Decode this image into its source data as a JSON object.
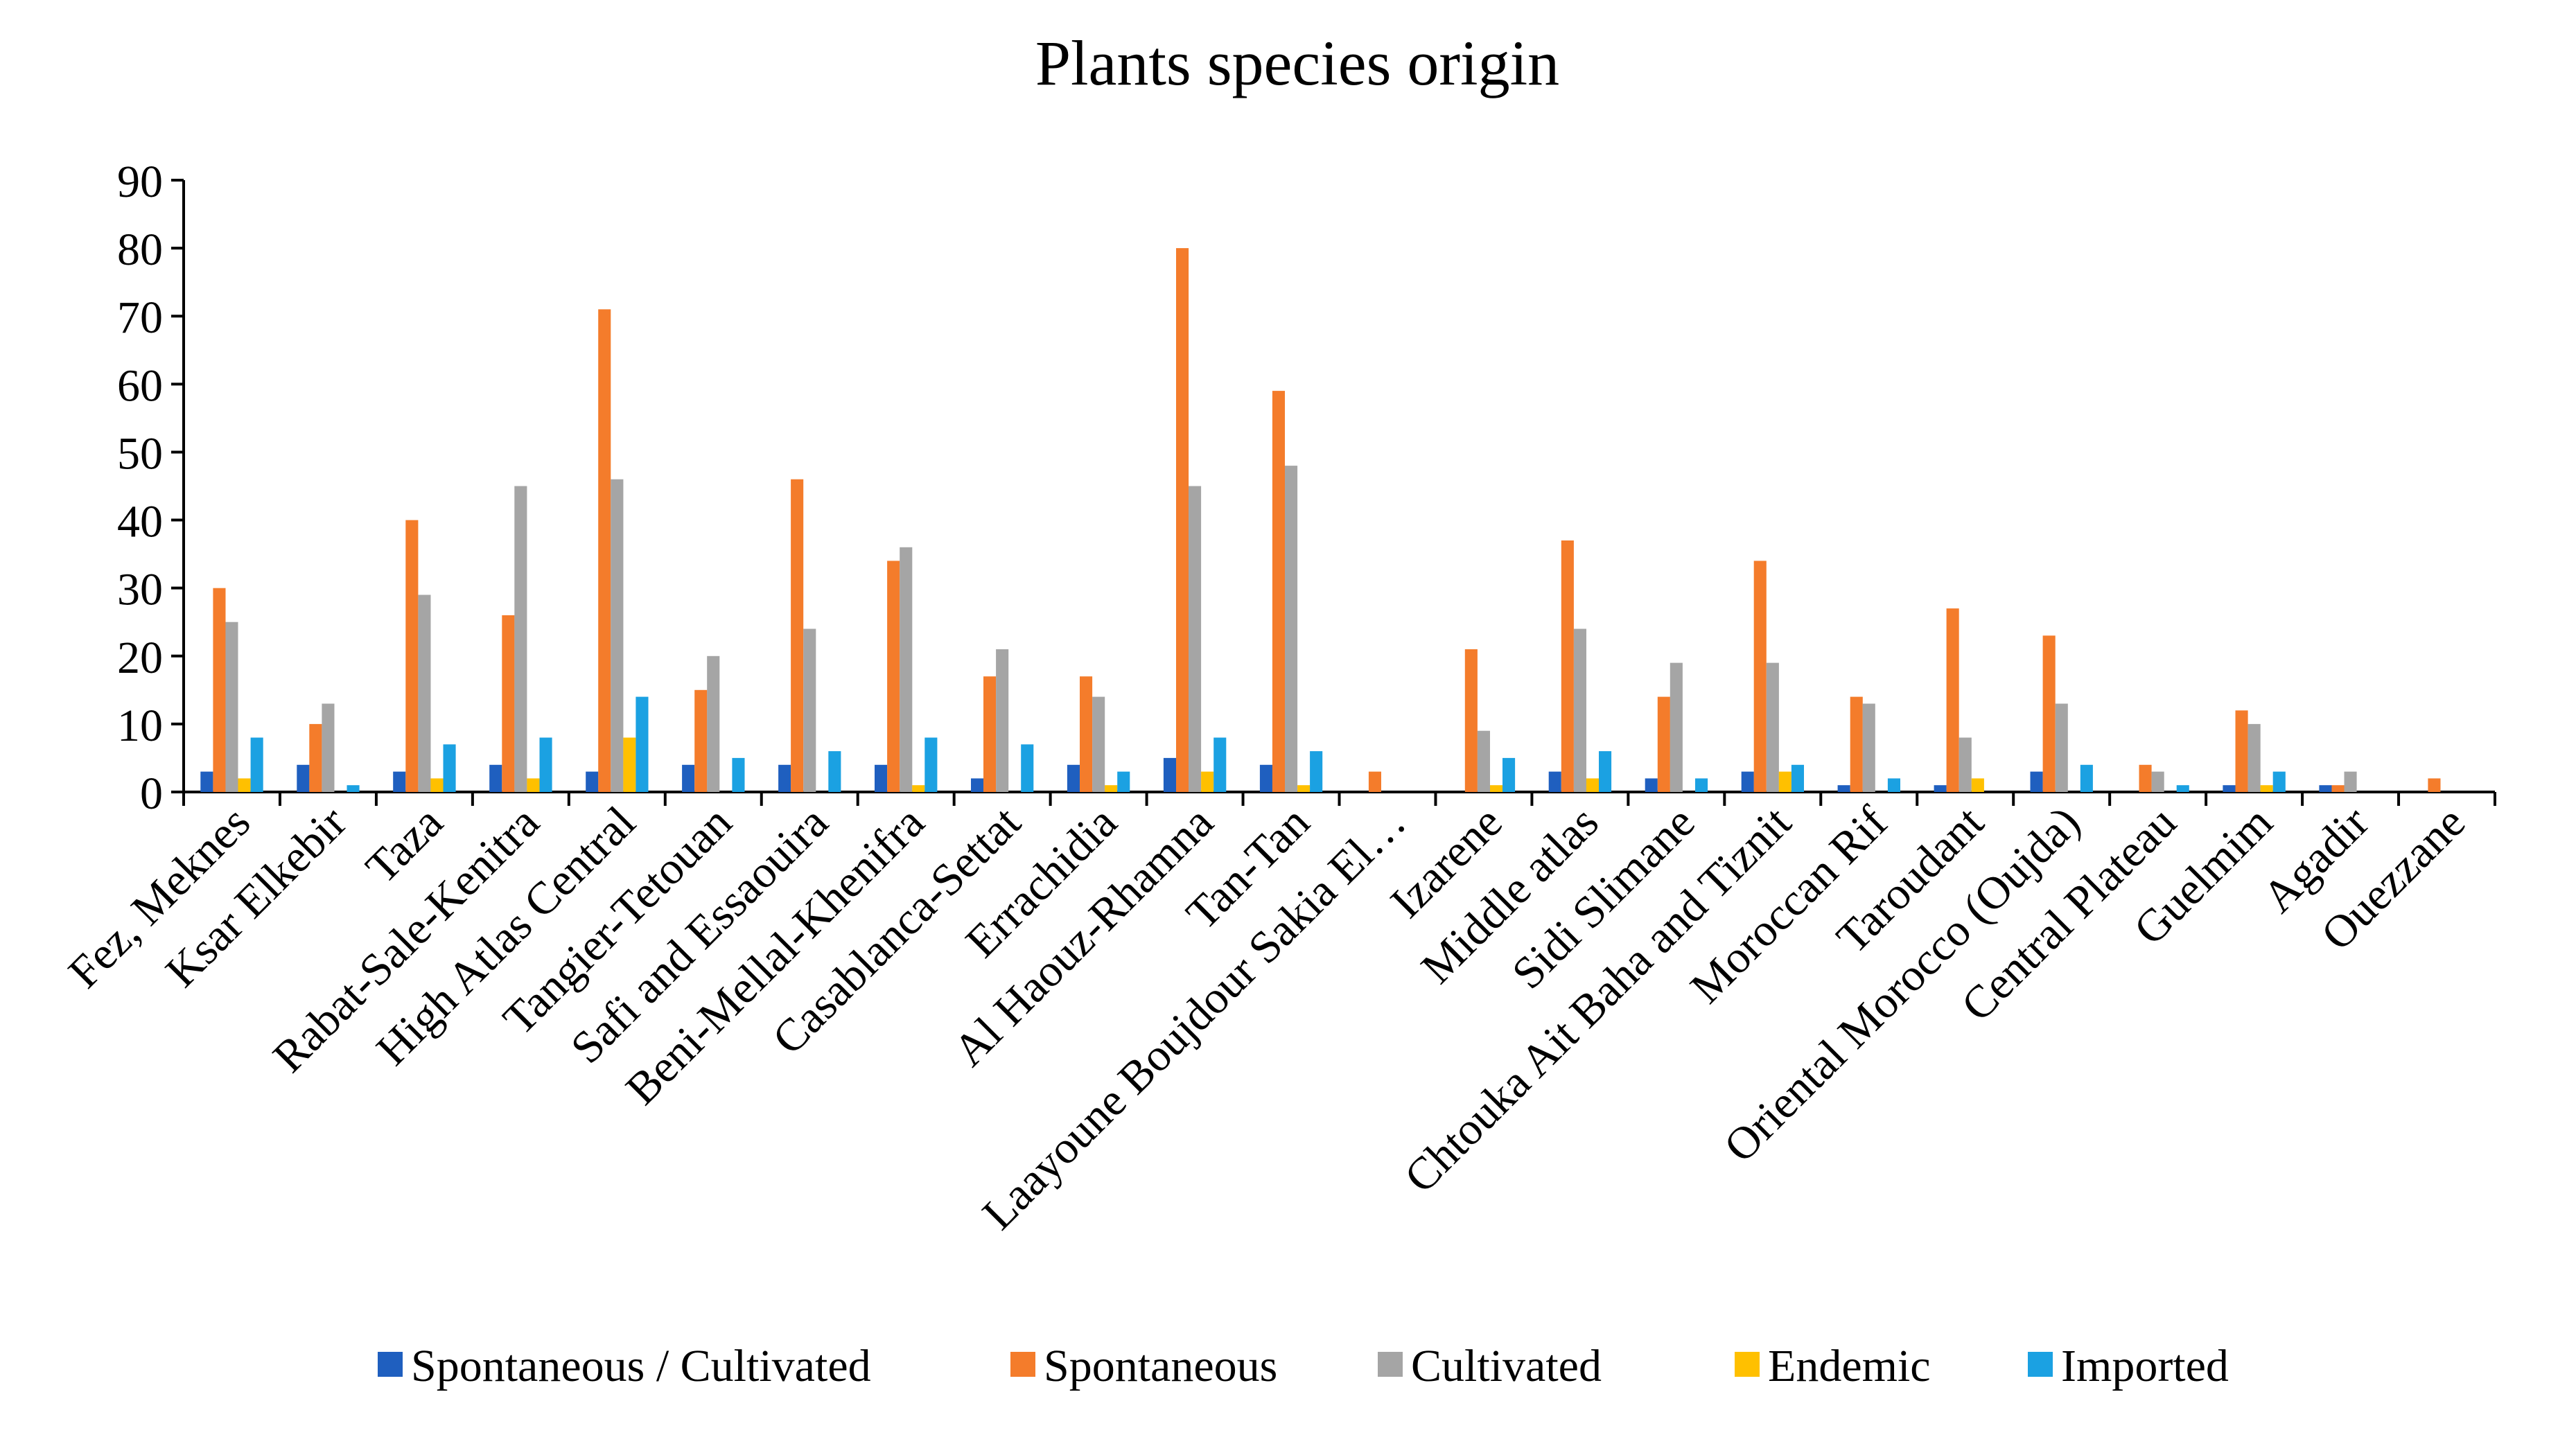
{
  "chart_data": {
    "type": "bar",
    "title": "Plants species origin",
    "xlabel": "",
    "ylabel": "",
    "ylim": [
      0,
      90
    ],
    "yticks": [
      0,
      10,
      20,
      30,
      40,
      50,
      60,
      70,
      80,
      90
    ],
    "grid": false,
    "legend_position": "bottom",
    "categories": [
      "Fez, Meknes",
      "Ksar Elkebir",
      "Taza",
      "Rabat-Sale-Kenitra",
      "High Atlas Central",
      "Tangier-Tetouan",
      "Safi and Essaouira",
      "Beni-Mellal-Khenifra",
      "Casablanca-Settat",
      "Errachidia",
      "Al Haouz-Rhamna",
      "Tan-Tan",
      "Laayoune Boujdour Sakia El…",
      "Izarene",
      "Middle atlas",
      "Sidi Slimane",
      "Chtouka Ait Baha and Tiznit",
      "Moroccan Rif",
      "Taroudant",
      "Oriental Morocco (Oujda)",
      "Central Plateau",
      "Guelmim",
      "Agadir",
      "Ouezzane"
    ],
    "series": [
      {
        "name": "Spontaneous / Cultivated",
        "color": "#1F5FBF",
        "values": [
          3,
          4,
          3,
          4,
          3,
          4,
          4,
          4,
          2,
          4,
          5,
          4,
          0,
          0,
          3,
          2,
          3,
          1,
          1,
          3,
          0,
          1,
          1,
          0
        ]
      },
      {
        "name": "Spontaneous",
        "color": "#F47C2B",
        "values": [
          30,
          10,
          40,
          26,
          71,
          15,
          46,
          34,
          17,
          17,
          80,
          59,
          3,
          21,
          37,
          14,
          34,
          14,
          27,
          23,
          4,
          12,
          1,
          2
        ]
      },
      {
        "name": "Cultivated",
        "color": "#A5A5A5",
        "values": [
          25,
          13,
          29,
          45,
          46,
          20,
          24,
          36,
          21,
          14,
          45,
          48,
          0,
          9,
          24,
          19,
          19,
          13,
          8,
          13,
          3,
          10,
          3,
          0
        ]
      },
      {
        "name": "Endemic",
        "color": "#FFC000",
        "values": [
          2,
          0,
          2,
          2,
          8,
          0,
          0,
          1,
          0,
          1,
          3,
          1,
          0,
          1,
          2,
          0,
          3,
          0,
          2,
          0,
          0,
          1,
          0,
          0
        ]
      },
      {
        "name": "Imported",
        "color": "#1BA1E2",
        "values": [
          8,
          1,
          7,
          8,
          14,
          5,
          6,
          8,
          7,
          3,
          8,
          6,
          0,
          5,
          6,
          2,
          4,
          2,
          0,
          4,
          1,
          3,
          0,
          0
        ]
      }
    ]
  }
}
